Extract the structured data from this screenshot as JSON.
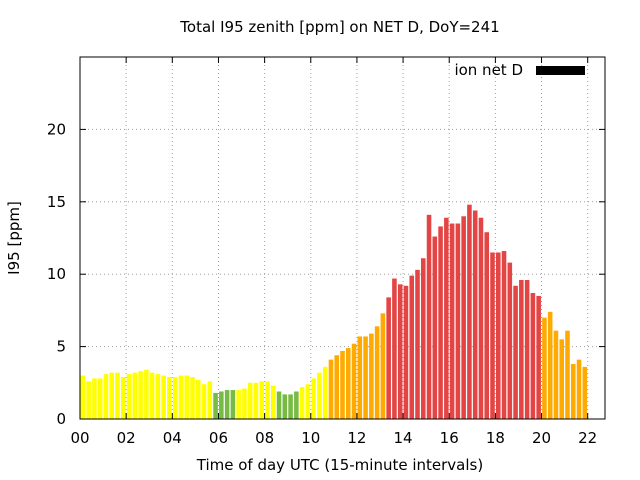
{
  "chart_data": {
    "type": "bar",
    "title": "Total I95 zenith [ppm] on NET D, DoY=241",
    "xlabel": "Time of day UTC (15-minute intervals)",
    "ylabel": "I95 [ppm]",
    "xlim": [
      0,
      22.75
    ],
    "ylim": [
      0,
      25
    ],
    "x_ticks": [
      "00",
      "02",
      "04",
      "06",
      "08",
      "10",
      "12",
      "14",
      "16",
      "18",
      "20",
      "22"
    ],
    "x_tick_values": [
      0,
      2,
      4,
      6,
      8,
      10,
      12,
      14,
      16,
      18,
      20,
      22
    ],
    "y_ticks": [
      "0",
      "5",
      "10",
      "15",
      "20"
    ],
    "y_tick_values": [
      0,
      5,
      10,
      15,
      20
    ],
    "grid": true,
    "legend": {
      "label": "ion net D",
      "position": "top-right",
      "color": "#000000"
    },
    "bar_interval_hours": 0.25,
    "category_colors": {
      "yellow": "#ffff00",
      "green": "#77bb44",
      "orange": "#ffaa00",
      "red": "#e34545"
    },
    "values": [
      3.0,
      2.6,
      2.8,
      2.8,
      3.1,
      3.2,
      3.2,
      2.9,
      3.1,
      3.2,
      3.3,
      3.4,
      3.2,
      3.1,
      3.0,
      2.9,
      2.9,
      3.0,
      3.0,
      2.9,
      2.7,
      2.4,
      2.6,
      1.8,
      1.9,
      2.0,
      2.0,
      2.0,
      2.1,
      2.5,
      2.5,
      2.6,
      2.6,
      2.3,
      1.9,
      1.7,
      1.7,
      1.9,
      2.2,
      2.4,
      2.8,
      3.2,
      3.6,
      4.1,
      4.4,
      4.7,
      4.9,
      5.2,
      5.7,
      5.7,
      5.9,
      6.4,
      7.3,
      8.4,
      9.7,
      9.3,
      9.2,
      9.9,
      10.3,
      11.1,
      14.1,
      12.6,
      13.3,
      13.9,
      13.5,
      13.5,
      14.0,
      14.8,
      14.4,
      13.9,
      12.9,
      11.5,
      11.5,
      11.6,
      10.8,
      9.2,
      9.6,
      9.6,
      8.7,
      8.5,
      7.0,
      7.4,
      6.1,
      5.5,
      6.1,
      3.8,
      4.1,
      3.6
    ],
    "colors": [
      "yellow",
      "yellow",
      "yellow",
      "yellow",
      "yellow",
      "yellow",
      "yellow",
      "yellow",
      "yellow",
      "yellow",
      "yellow",
      "yellow",
      "yellow",
      "yellow",
      "yellow",
      "yellow",
      "yellow",
      "yellow",
      "yellow",
      "yellow",
      "yellow",
      "yellow",
      "yellow",
      "green",
      "green",
      "green",
      "green",
      "yellow",
      "yellow",
      "yellow",
      "yellow",
      "yellow",
      "yellow",
      "yellow",
      "green",
      "green",
      "green",
      "green",
      "yellow",
      "yellow",
      "yellow",
      "yellow",
      "yellow",
      "orange",
      "orange",
      "orange",
      "orange",
      "orange",
      "orange",
      "orange",
      "orange",
      "orange",
      "orange",
      "red",
      "red",
      "red",
      "red",
      "red",
      "red",
      "red",
      "red",
      "red",
      "red",
      "red",
      "red",
      "red",
      "red",
      "red",
      "red",
      "red",
      "red",
      "red",
      "red",
      "red",
      "red",
      "red",
      "red",
      "red",
      "red",
      "red",
      "orange",
      "orange",
      "orange",
      "orange",
      "orange",
      "orange",
      "orange",
      "orange"
    ]
  }
}
